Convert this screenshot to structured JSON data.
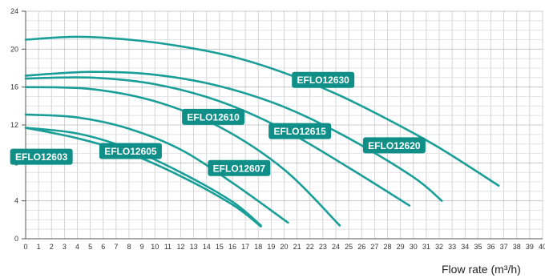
{
  "chart_data": {
    "type": "line",
    "xlabel": "Flow rate (m³/h)",
    "ylabel": "",
    "xlim": [
      0,
      40
    ],
    "ylim": [
      0,
      24
    ],
    "x_ticks": [
      "0",
      "1",
      "2",
      "3",
      "4",
      "5",
      "6",
      "7",
      "8",
      "9",
      "10",
      "11",
      "12",
      "13",
      "14",
      "15",
      "16",
      "17",
      "18",
      "19",
      "20",
      "21",
      "22",
      "23",
      "24",
      "25",
      "26",
      "27",
      "28",
      "29",
      "30",
      "31",
      "32",
      "33",
      "34",
      "35",
      "36",
      "37",
      "38",
      "39",
      "40"
    ],
    "y_ticks": [
      "0",
      "4",
      "8",
      "12",
      "16",
      "20",
      "24"
    ],
    "grid": true,
    "color": "#1a9e98",
    "label_color": "#0f8f88",
    "series": [
      {
        "name": "EFLO12603",
        "points": [
          [
            0,
            11.7
          ],
          [
            4,
            10.6
          ],
          [
            8,
            9.0
          ],
          [
            12,
            6.6
          ],
          [
            16,
            3.6
          ],
          [
            18.2,
            1.3
          ]
        ]
      },
      {
        "name": "EFLO12605",
        "points": [
          [
            0,
            11.7
          ],
          [
            4,
            11.1
          ],
          [
            8,
            9.5
          ],
          [
            12,
            7.0
          ],
          [
            16,
            3.9
          ],
          [
            18.2,
            1.4
          ]
        ]
      },
      {
        "name": "EFLO12607",
        "points": [
          [
            0,
            13.1
          ],
          [
            4,
            12.8
          ],
          [
            8,
            11.6
          ],
          [
            12,
            9.4
          ],
          [
            16,
            5.9
          ],
          [
            20.3,
            1.7
          ]
        ]
      },
      {
        "name": "EFLO12610",
        "points": [
          [
            0,
            16.0
          ],
          [
            5,
            15.8
          ],
          [
            10,
            14.5
          ],
          [
            15,
            11.8
          ],
          [
            20,
            7.3
          ],
          [
            24.3,
            1.4
          ]
        ]
      },
      {
        "name": "EFLO12615",
        "points": [
          [
            0,
            16.9
          ],
          [
            5,
            17.0
          ],
          [
            10,
            16.3
          ],
          [
            15,
            14.5
          ],
          [
            20,
            11.5
          ],
          [
            25,
            7.5
          ],
          [
            29.7,
            3.5
          ]
        ]
      },
      {
        "name": "EFLO12620",
        "points": [
          [
            0,
            17.2
          ],
          [
            5,
            17.6
          ],
          [
            10,
            17.3
          ],
          [
            15,
            16.1
          ],
          [
            20,
            13.9
          ],
          [
            25,
            10.6
          ],
          [
            30,
            6.5
          ],
          [
            32.2,
            4.0
          ]
        ]
      },
      {
        "name": "EFLO12630",
        "points": [
          [
            0,
            21.0
          ],
          [
            4,
            21.3
          ],
          [
            8,
            21.0
          ],
          [
            12,
            20.3
          ],
          [
            16,
            19.2
          ],
          [
            20,
            17.5
          ],
          [
            24,
            15.3
          ],
          [
            28,
            12.6
          ],
          [
            32,
            9.6
          ],
          [
            36.6,
            5.6
          ]
        ]
      }
    ],
    "annotations": [
      {
        "text": "EFLO12630",
        "x": 20.6,
        "y": 17.6
      },
      {
        "text": "EFLO12620",
        "x": 26.1,
        "y": 10.7
      },
      {
        "text": "EFLO12615",
        "x": 18.8,
        "y": 12.2
      },
      {
        "text": "EFLO12610",
        "x": 12.1,
        "y": 13.7
      },
      {
        "text": "EFLO12605",
        "x": 5.7,
        "y": 10.1
      },
      {
        "text": "EFLO12607",
        "x": 14.1,
        "y": 8.3
      },
      {
        "text": "EFLO12603",
        "x": -1.2,
        "y": 9.5
      }
    ]
  }
}
